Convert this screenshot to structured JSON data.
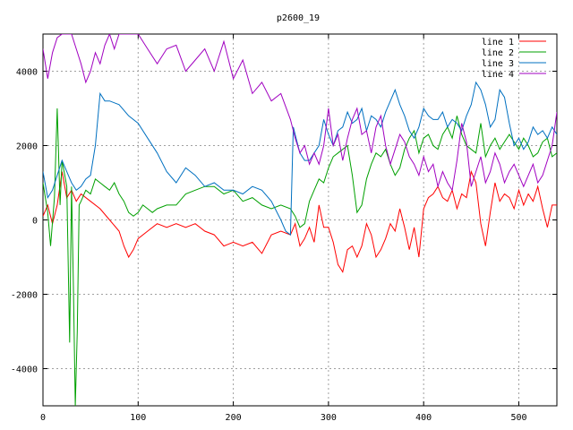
{
  "chart_data": {
    "type": "line",
    "title": "p2600_19",
    "xlabel": "",
    "ylabel": "",
    "xlim": [
      0,
      540
    ],
    "ylim": [
      -5000,
      5000
    ],
    "x_ticks": [
      0,
      100,
      200,
      300,
      400,
      500
    ],
    "y_ticks": [
      -4000,
      -2000,
      0,
      2000,
      4000
    ],
    "grid": true,
    "legend_position": "top-right",
    "series": [
      {
        "name": "line 1",
        "color": "#ff0000",
        "x": [
          0,
          5,
          10,
          15,
          20,
          25,
          30,
          35,
          40,
          50,
          60,
          70,
          80,
          85,
          90,
          95,
          100,
          110,
          120,
          130,
          140,
          150,
          160,
          170,
          180,
          190,
          200,
          210,
          220,
          230,
          240,
          250,
          260,
          265,
          270,
          275,
          280,
          285,
          290,
          295,
          300,
          305,
          310,
          315,
          320,
          325,
          330,
          335,
          340,
          345,
          350,
          355,
          360,
          365,
          370,
          375,
          380,
          385,
          390,
          395,
          400,
          405,
          410,
          415,
          420,
          425,
          430,
          435,
          440,
          445,
          450,
          455,
          460,
          465,
          470,
          475,
          480,
          485,
          490,
          495,
          500,
          505,
          510,
          515,
          520,
          525,
          530,
          535,
          540
        ],
        "y": [
          100,
          400,
          -100,
          400,
          1300,
          600,
          800,
          500,
          700,
          500,
          300,
          0,
          -300,
          -700,
          -1000,
          -800,
          -500,
          -300,
          -100,
          -200,
          -100,
          -200,
          -100,
          -300,
          -400,
          -700,
          -600,
          -700,
          -600,
          -900,
          -400,
          -300,
          -400,
          -100,
          -700,
          -500,
          -200,
          -600,
          400,
          -200,
          -200,
          -600,
          -1200,
          -1400,
          -800,
          -700,
          -1000,
          -700,
          -100,
          -400,
          -1000,
          -800,
          -500,
          -100,
          -300,
          300,
          -200,
          -800,
          -200,
          -1000,
          300,
          600,
          700,
          900,
          600,
          500,
          800,
          300,
          700,
          600,
          1300,
          1000,
          -100,
          -700,
          200,
          1000,
          500,
          700,
          600,
          300,
          800,
          400,
          700,
          500,
          900,
          300,
          -200,
          400,
          400
        ]
      },
      {
        "name": "line 2",
        "color": "#00a000",
        "x": [
          0,
          5,
          8,
          12,
          15,
          18,
          20,
          25,
          28,
          30,
          32,
          34,
          36,
          38,
          40,
          45,
          50,
          55,
          60,
          65,
          70,
          75,
          80,
          85,
          90,
          95,
          100,
          105,
          110,
          115,
          120,
          130,
          140,
          150,
          160,
          170,
          180,
          190,
          200,
          210,
          220,
          230,
          240,
          250,
          260,
          265,
          270,
          275,
          280,
          285,
          290,
          295,
          300,
          305,
          310,
          315,
          320,
          325,
          330,
          335,
          340,
          345,
          350,
          355,
          360,
          365,
          370,
          375,
          380,
          385,
          390,
          395,
          400,
          405,
          410,
          415,
          420,
          425,
          430,
          435,
          440,
          445,
          450,
          455,
          460,
          465,
          470,
          475,
          480,
          485,
          490,
          495,
          500,
          505,
          510,
          515,
          520,
          525,
          530,
          535,
          540
        ],
        "y": [
          1000,
          200,
          -700,
          600,
          3000,
          400,
          1600,
          900,
          -3300,
          900,
          -1800,
          -5000,
          -3000,
          400,
          500,
          800,
          700,
          1100,
          1000,
          900,
          800,
          1000,
          700,
          500,
          200,
          100,
          200,
          400,
          300,
          200,
          300,
          400,
          400,
          700,
          800,
          900,
          900,
          700,
          800,
          500,
          600,
          400,
          300,
          400,
          300,
          100,
          -200,
          -100,
          500,
          800,
          1100,
          1000,
          1400,
          1700,
          1800,
          1900,
          2000,
          1200,
          200,
          400,
          1100,
          1500,
          1800,
          1700,
          1900,
          1500,
          1200,
          1400,
          1900,
          2200,
          2400,
          1800,
          2200,
          2300,
          2000,
          1900,
          2300,
          2500,
          2200,
          2800,
          2300,
          2000,
          1900,
          1800,
          2600,
          1700,
          2000,
          2200,
          1900,
          2100,
          2300,
          2100,
          1900,
          2200,
          2000,
          1700,
          1800,
          2100,
          2200,
          1700,
          1800
        ]
      },
      {
        "name": "line 3",
        "color": "#0070c0",
        "x": [
          0,
          5,
          10,
          15,
          20,
          25,
          30,
          35,
          40,
          45,
          50,
          55,
          60,
          65,
          70,
          80,
          90,
          100,
          110,
          120,
          130,
          140,
          150,
          160,
          170,
          180,
          190,
          200,
          210,
          220,
          230,
          240,
          250,
          255,
          260,
          263,
          266,
          270,
          275,
          280,
          285,
          290,
          295,
          300,
          305,
          310,
          315,
          320,
          325,
          330,
          335,
          340,
          345,
          350,
          355,
          360,
          365,
          370,
          375,
          380,
          385,
          390,
          395,
          400,
          405,
          410,
          415,
          420,
          425,
          430,
          435,
          440,
          445,
          450,
          455,
          460,
          465,
          470,
          475,
          480,
          485,
          490,
          495,
          500,
          505,
          510,
          515,
          520,
          525,
          530,
          535,
          540
        ],
        "y": [
          1300,
          600,
          800,
          1200,
          1600,
          1300,
          1000,
          800,
          900,
          1100,
          1200,
          2000,
          3400,
          3200,
          3200,
          3100,
          2800,
          2600,
          2200,
          1800,
          1300,
          1000,
          1400,
          1200,
          900,
          1000,
          800,
          800,
          700,
          900,
          800,
          500,
          0,
          -300,
          -400,
          2500,
          2200,
          1800,
          1600,
          1600,
          1800,
          2000,
          2700,
          2300,
          2000,
          2400,
          2500,
          2900,
          2600,
          2700,
          3000,
          2400,
          2800,
          2700,
          2500,
          2900,
          3200,
          3500,
          3100,
          2800,
          2400,
          2200,
          2500,
          3000,
          2800,
          2700,
          2700,
          2900,
          2500,
          2700,
          2600,
          2400,
          2800,
          3100,
          3700,
          3500,
          3100,
          2500,
          2700,
          3500,
          3300,
          2600,
          2000,
          2200,
          1900,
          2100,
          2500,
          2300,
          2400,
          2200,
          2500,
          2300
        ]
      },
      {
        "name": "line 4",
        "color": "#a000c0",
        "x": [
          0,
          5,
          10,
          15,
          20,
          25,
          30,
          35,
          40,
          45,
          50,
          55,
          60,
          65,
          70,
          75,
          80,
          90,
          100,
          110,
          120,
          130,
          140,
          150,
          160,
          170,
          180,
          190,
          200,
          210,
          220,
          230,
          240,
          250,
          260,
          265,
          270,
          275,
          280,
          285,
          290,
          295,
          300,
          305,
          310,
          315,
          320,
          325,
          330,
          335,
          340,
          345,
          350,
          355,
          360,
          365,
          370,
          375,
          380,
          385,
          390,
          395,
          400,
          405,
          410,
          415,
          420,
          425,
          430,
          435,
          440,
          445,
          450,
          455,
          460,
          465,
          470,
          475,
          480,
          485,
          490,
          495,
          500,
          505,
          510,
          515,
          520,
          525,
          530,
          535,
          540
        ],
        "y": [
          4600,
          3800,
          4500,
          4900,
          5000,
          5000,
          5000,
          4600,
          4200,
          3700,
          4000,
          4500,
          4200,
          4700,
          5000,
          4600,
          5000,
          5000,
          5000,
          4600,
          4200,
          4600,
          4700,
          4000,
          4300,
          4600,
          4000,
          4800,
          3800,
          4300,
          3400,
          3700,
          3200,
          3400,
          2700,
          2200,
          1800,
          2000,
          1500,
          1800,
          1500,
          2000,
          3000,
          2000,
          2300,
          1600,
          2200,
          2700,
          3000,
          2300,
          2400,
          1800,
          2500,
          2800,
          2000,
          1500,
          1900,
          2300,
          2100,
          1700,
          1500,
          1200,
          1700,
          1300,
          1500,
          900,
          1300,
          1000,
          800,
          1600,
          2600,
          2100,
          900,
          1300,
          1700,
          1000,
          1300,
          1800,
          1500,
          1000,
          1300,
          1500,
          1200,
          900,
          1200,
          1500,
          1000,
          1200,
          1600,
          2000,
          2900
        ]
      }
    ]
  }
}
